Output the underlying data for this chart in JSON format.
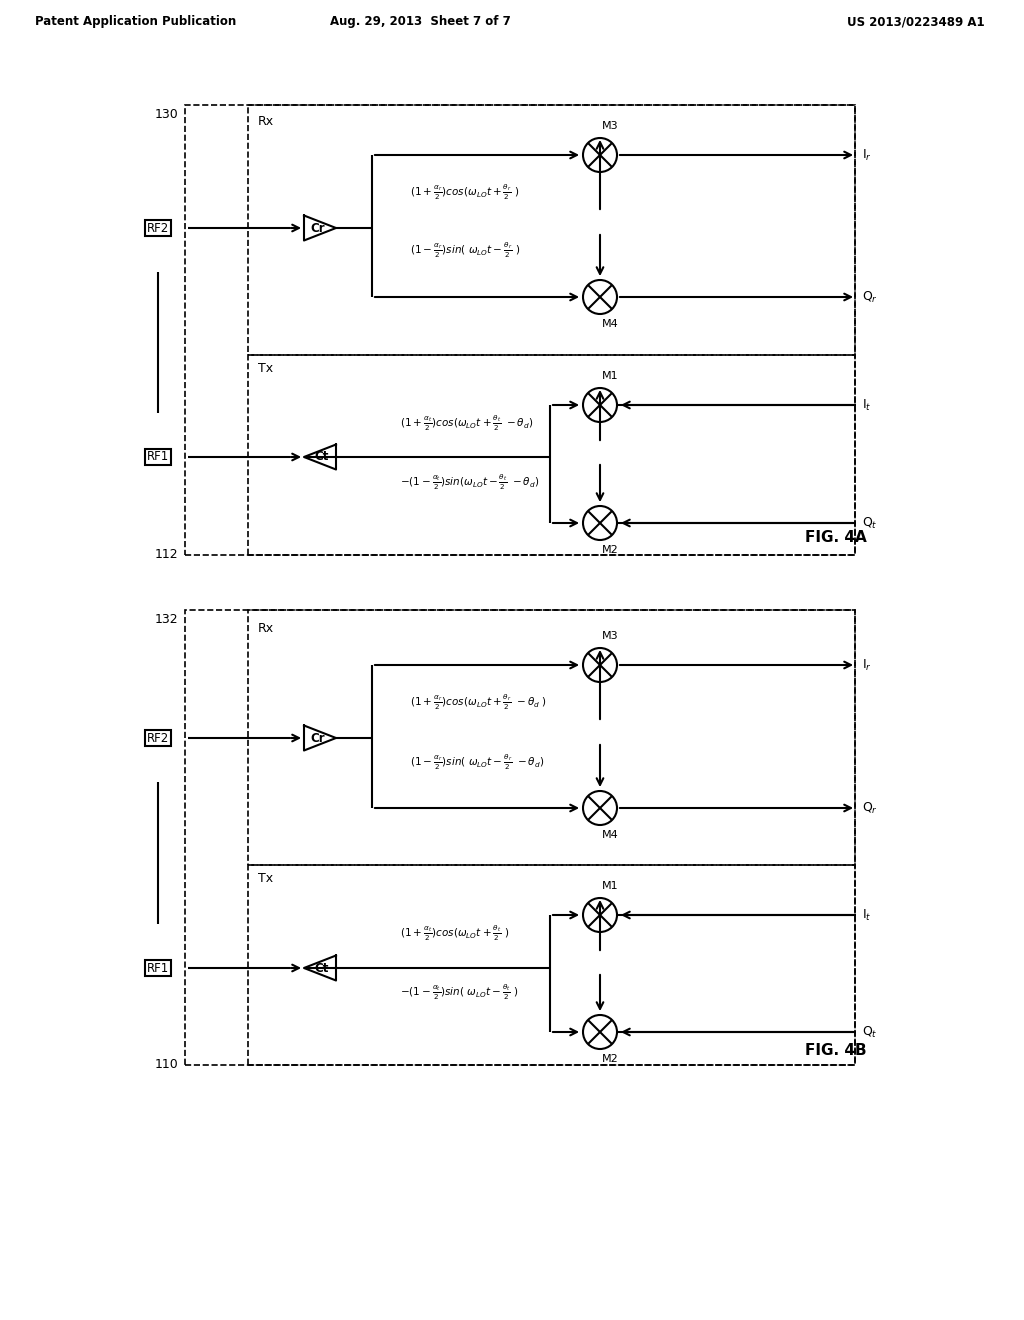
{
  "header_left": "Patent Application Publication",
  "header_mid": "Aug. 29, 2013  Sheet 7 of 7",
  "header_right": "US 2013/0223489 A1",
  "fig4a_fig": "FIG. 4A",
  "fig4b_fig": "FIG. 4B",
  "bg_color": "#ffffff",
  "line_color": "#000000",
  "text_color": "#000000"
}
